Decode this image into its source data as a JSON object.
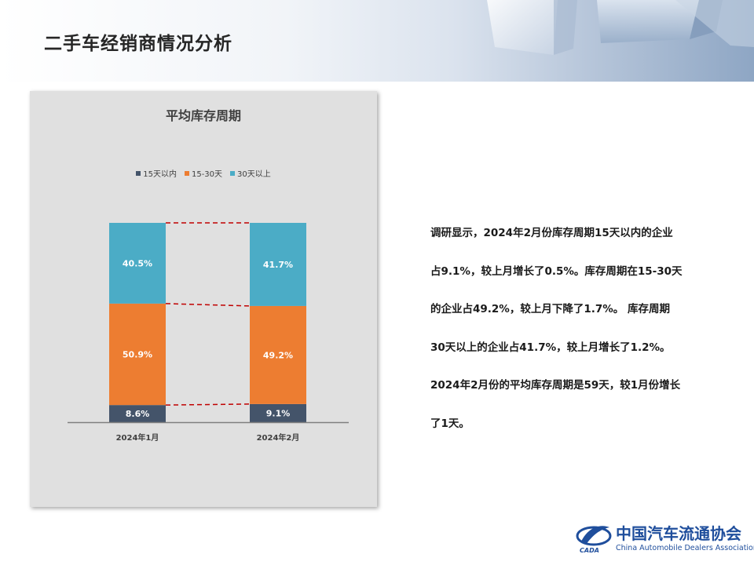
{
  "page": {
    "title": "二手车经销商情况分析"
  },
  "chart_data": {
    "type": "bar",
    "stacked": true,
    "normalized_percent": true,
    "title": "平均库存周期",
    "categories": [
      "2024年1月",
      "2024年2月"
    ],
    "series": [
      {
        "name": "15天以内",
        "values": [
          8.6,
          9.1
        ],
        "labels": [
          "8.6%",
          "9.1%"
        ],
        "color": "#44546a"
      },
      {
        "name": "15-30天",
        "values": [
          50.9,
          49.2
        ],
        "labels": [
          "50.9%",
          "49.2%"
        ],
        "color": "#ed7d31"
      },
      {
        "name": "30天以上",
        "values": [
          40.5,
          41.7
        ],
        "labels": [
          "40.5%",
          "41.7%"
        ],
        "color": "#4bacc6"
      }
    ],
    "series_lines": {
      "color": "#c00000",
      "dashed": true
    },
    "legend_position": "top",
    "grid": false,
    "ylim": [
      0,
      100
    ]
  },
  "text_lines": [
    "调研显示，2024年2月份库存周期15天以内的企业",
    "占9.1%，较上月增长了0.5%。库存周期在15-30天",
    "的企业占49.2%，较上月下降了1.7%。 库存周期",
    "30天以上的企业占41.7%，较上月增长了1.2%。",
    "2024年2月份的平均库存周期是59天，较1月份增长",
    "了1天。"
  ],
  "logo": {
    "name": "中国汽车流通协会",
    "name_en": "China Automobile Dealers Association",
    "abbr": "CADA"
  }
}
